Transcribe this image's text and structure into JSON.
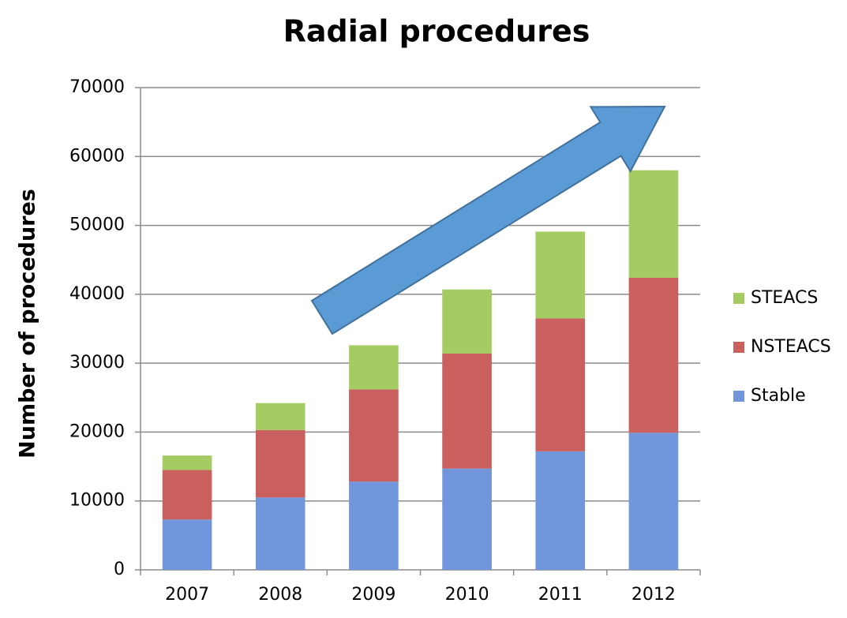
{
  "chart_data": {
    "type": "stacked_bar",
    "title": "Radial procedures",
    "y_label": "Number of procedures",
    "categories": [
      "2007",
      "2008",
      "2009",
      "2010",
      "2011",
      "2012"
    ],
    "series": [
      {
        "name": "Stable",
        "color": "#7196dc",
        "values": [
          7300,
          10500,
          12800,
          14700,
          17200,
          19900
        ]
      },
      {
        "name": "NSTEACS",
        "color": "#c9605d",
        "values": [
          7200,
          9800,
          13400,
          16700,
          19300,
          22500
        ]
      },
      {
        "name": "STEACS",
        "color": "#a4cc62",
        "values": [
          2100,
          3900,
          6400,
          9300,
          12600,
          15600
        ]
      }
    ],
    "ylim": [
      0,
      70000
    ],
    "yticks": [
      0,
      10000,
      20000,
      30000,
      40000,
      50000,
      60000,
      70000
    ],
    "grid": true,
    "legend": "right"
  }
}
